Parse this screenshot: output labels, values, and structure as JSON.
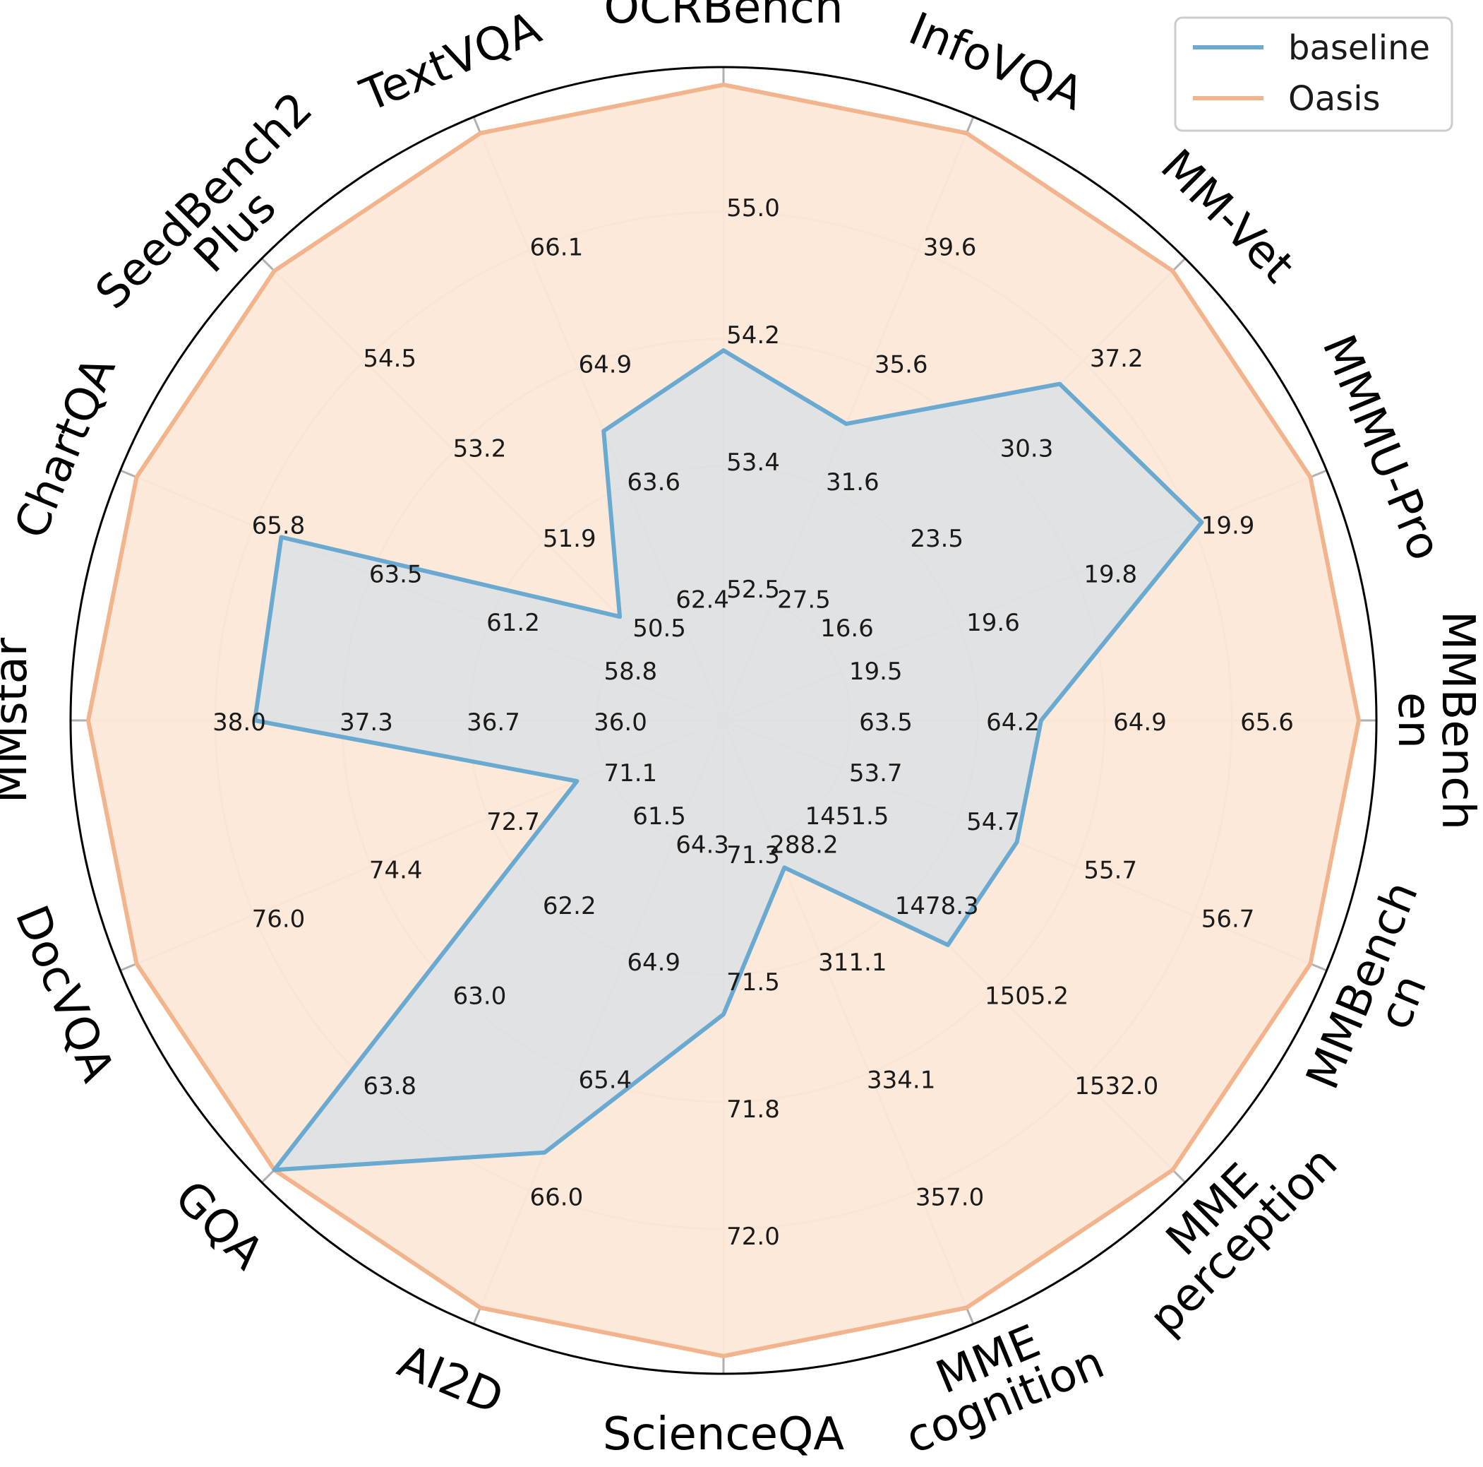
{
  "chart_data": {
    "type": "radar",
    "legend": {
      "placement": "top-right"
    },
    "grid": true,
    "series": [
      {
        "name": "baseline",
        "color": "#6aaad0",
        "fill": "#c8dcec",
        "values": [
          53.6,
          31.6,
          30.3,
          19.8,
          64.2,
          54.7,
          1478.3,
          288.2,
          71.5,
          65.4,
          63.8,
          71.1,
          37.3,
          63.5,
          50.5,
          63.6
        ]
      },
      {
        "name": "Oasis",
        "color": "#f2b48c",
        "fill": "#fde8d8",
        "values": [
          55.0,
          39.6,
          37.2,
          19.9,
          65.6,
          56.7,
          1532.0,
          357.0,
          72.0,
          66.0,
          63.8,
          76.0,
          38.0,
          65.8,
          54.5,
          66.1
        ]
      }
    ],
    "axes": [
      {
        "name": [
          "OCRBench"
        ],
        "ticks": [
          "52.5",
          "53.4",
          "54.2",
          "55.0"
        ],
        "min": 51.65,
        "max": 55.0
      },
      {
        "name": [
          "InfoVQA"
        ],
        "ticks": [
          "27.5",
          "31.6",
          "35.6",
          "39.6"
        ],
        "min": 23.44,
        "max": 39.6
      },
      {
        "name": [
          "MM-Vet"
        ],
        "ticks": [
          "16.6",
          "23.5",
          "30.3",
          "37.2"
        ],
        "min": 9.76,
        "max": 37.2
      },
      {
        "name": [
          "MMMU-Pro"
        ],
        "ticks": [
          "19.5",
          "19.6",
          "19.8",
          "19.9"
        ],
        "min": 19.36,
        "max": 19.9
      },
      {
        "name": [
          "MMBench",
          "en"
        ],
        "ticks": [
          "63.5",
          "64.2",
          "64.9",
          "65.6"
        ],
        "min": 62.8,
        "max": 65.6
      },
      {
        "name": [
          "MMBench",
          "cn"
        ],
        "ticks": [
          "53.7",
          "54.7",
          "55.7",
          "56.7"
        ],
        "min": 52.7,
        "max": 56.7
      },
      {
        "name": [
          "MME",
          "perception"
        ],
        "ticks": [
          "1451.5",
          "1478.3",
          "1505.2",
          "1532.0"
        ],
        "min": 1424.7,
        "max": 1532.0
      },
      {
        "name": [
          "MME",
          "cognition"
        ],
        "ticks": [
          "288.2",
          "311.1",
          "334.1",
          "357.0"
        ],
        "min": 265.2,
        "max": 357.0
      },
      {
        "name": [
          "ScienceQA"
        ],
        "ticks": [
          "71.3",
          "71.5",
          "71.8",
          "72.0"
        ],
        "min": 71.07,
        "max": 72.0
      },
      {
        "name": [
          "AI2D"
        ],
        "ticks": [
          "64.3",
          "64.9",
          "65.4",
          "66.0"
        ],
        "min": 63.73,
        "max": 66.0
      },
      {
        "name": [
          "GQA"
        ],
        "ticks": [
          "61.5",
          "62.2",
          "63.0",
          "63.8"
        ],
        "min": 60.73,
        "max": 63.8
      },
      {
        "name": [
          "DocVQA"
        ],
        "ticks": [
          "71.1",
          "72.7",
          "74.4",
          "76.0"
        ],
        "min": 69.47,
        "max": 76.0
      },
      {
        "name": [
          "MMstar"
        ],
        "ticks": [
          "36.0",
          "36.7",
          "37.3",
          "38.0"
        ],
        "min": 35.33,
        "max": 38.0
      },
      {
        "name": [
          "ChartQA"
        ],
        "ticks": [
          "58.8",
          "61.2",
          "63.5",
          "65.8"
        ],
        "min": 56.47,
        "max": 65.8
      },
      {
        "name": [
          "SeedBench2",
          "Plus"
        ],
        "ticks": [
          "51.9",
          "53.2",
          "54.5"
        ],
        "tick_levels": [
          2,
          3,
          4
        ],
        "extra_ticks": [
          "50.5"
        ],
        "min": 49.3,
        "max": 54.5
      },
      {
        "name": [
          "TextVQA"
        ],
        "ticks": [
          "62.4",
          "63.6",
          "64.9",
          "66.1"
        ],
        "min": 61.17,
        "max": 66.1
      }
    ],
    "radial_levels": 4
  }
}
